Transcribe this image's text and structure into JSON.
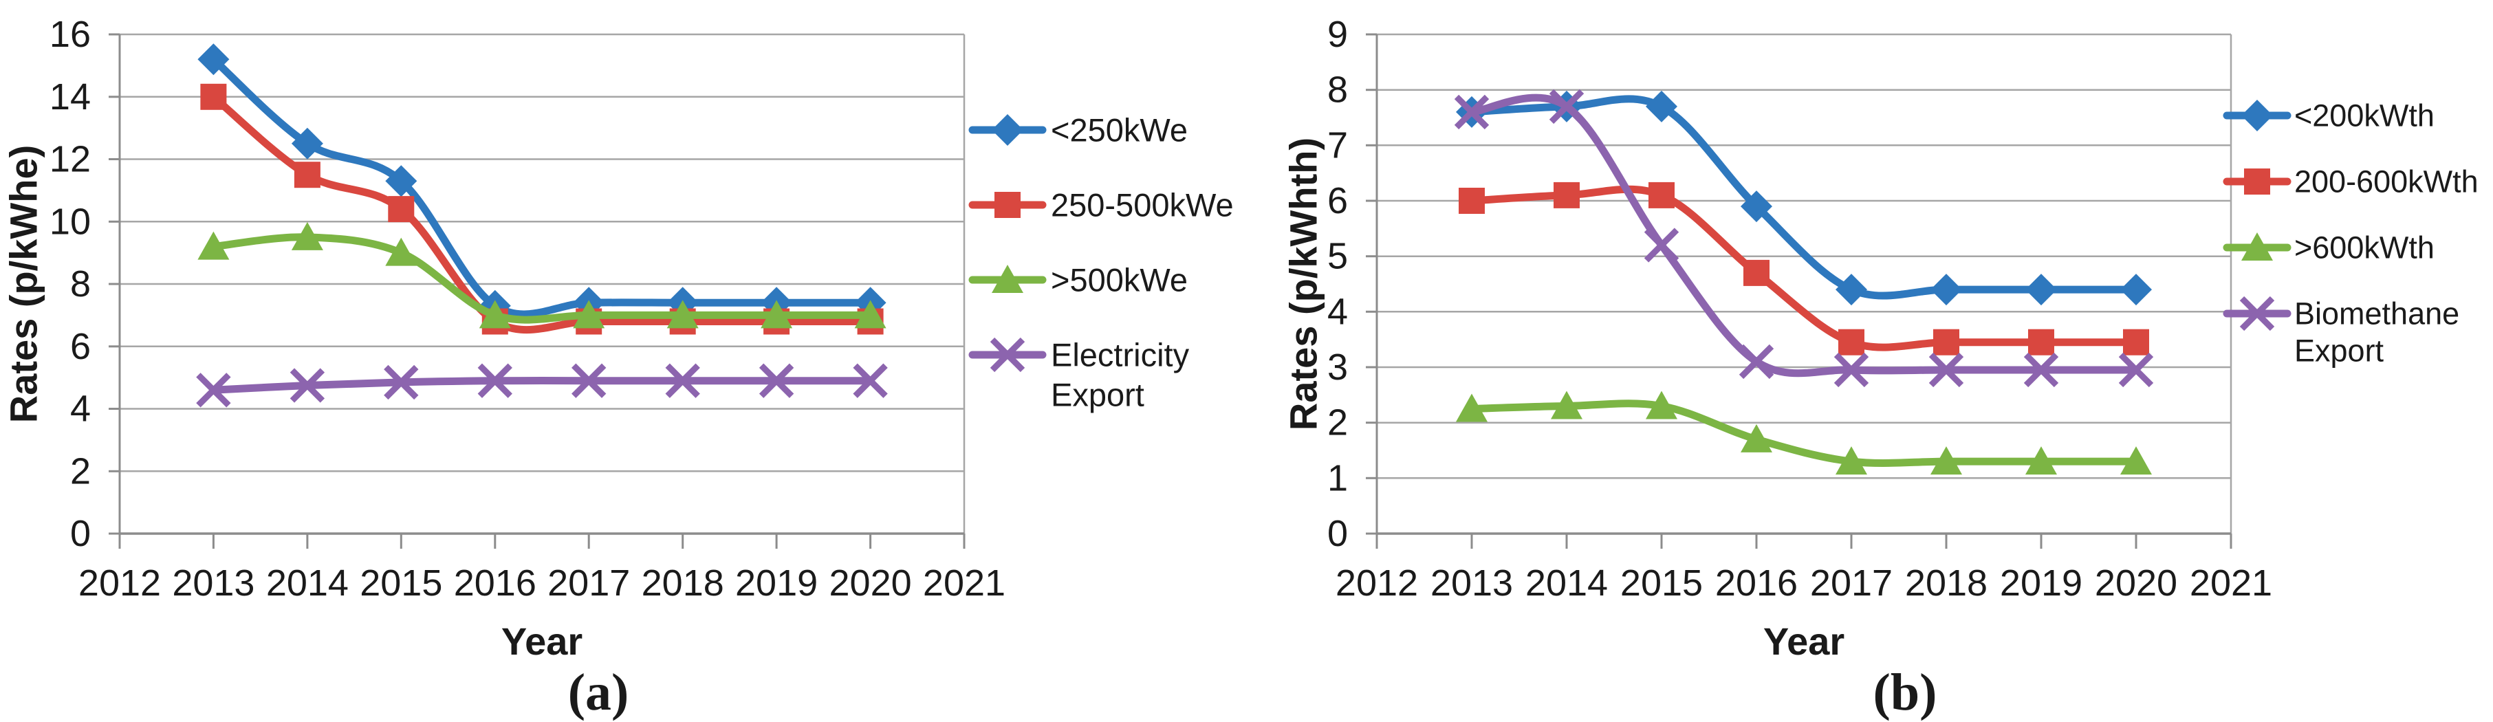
{
  "figure": {
    "background": "#ffffff",
    "text_color": "#1a1a1a",
    "gridline_color": "#a6a6a6",
    "axis_color": "#8c8c8c"
  },
  "chart_data": [
    {
      "id": "a",
      "type": "line",
      "caption": "(a)",
      "xlabel": "Year",
      "ylabel": "Rates (p/kWhe)",
      "grid": true,
      "smooth": true,
      "legend_position": "right",
      "xticks": [
        2012,
        2013,
        2014,
        2015,
        2016,
        2017,
        2018,
        2019,
        2020,
        2021
      ],
      "x": [
        2013,
        2014,
        2015,
        2016,
        2017,
        2018,
        2019,
        2020
      ],
      "ylim": [
        0,
        16
      ],
      "ytick_step": 2,
      "series": [
        {
          "name": "<250kWe",
          "color": "#2E78BE",
          "marker": "diamond",
          "values": [
            15.2,
            12.5,
            11.3,
            7.3,
            7.4,
            7.4,
            7.4,
            7.4
          ]
        },
        {
          "name": "250-500kWe",
          "color": "#D9473F",
          "marker": "square",
          "values": [
            14.0,
            11.5,
            10.4,
            6.8,
            6.8,
            6.8,
            6.8,
            6.8
          ]
        },
        {
          "name": ">500kWe",
          "color": "#7CB544",
          "marker": "triangle",
          "values": [
            9.2,
            9.5,
            9.0,
            7.0,
            7.0,
            7.0,
            7.0,
            7.0
          ]
        },
        {
          "name": "Electricity Export",
          "color": "#8C64AE",
          "marker": "x",
          "legend_lines": [
            "Electricity",
            "Export"
          ],
          "values": [
            4.6,
            4.75,
            4.85,
            4.9,
            4.9,
            4.9,
            4.9,
            4.9
          ]
        }
      ]
    },
    {
      "id": "b",
      "type": "line",
      "caption": "(b)",
      "xlabel": "Year",
      "ylabel": "Rates (p/kWhth)",
      "grid": true,
      "smooth": true,
      "legend_position": "right",
      "xticks": [
        2012,
        2013,
        2014,
        2015,
        2016,
        2017,
        2018,
        2019,
        2020,
        2021
      ],
      "x": [
        2013,
        2014,
        2015,
        2016,
        2017,
        2018,
        2019,
        2020
      ],
      "ylim": [
        0,
        9
      ],
      "ytick_step": 1,
      "series": [
        {
          "name": "<200kWth",
          "color": "#2E78BE",
          "marker": "diamond",
          "values": [
            7.6,
            7.7,
            7.7,
            5.9,
            4.4,
            4.4,
            4.4,
            4.4
          ]
        },
        {
          "name": "200-600kWth",
          "color": "#D9473F",
          "marker": "square",
          "values": [
            6.0,
            6.1,
            6.1,
            4.7,
            3.45,
            3.45,
            3.45,
            3.45
          ]
        },
        {
          "name": ">600kWth",
          "color": "#7CB544",
          "marker": "triangle",
          "values": [
            2.25,
            2.3,
            2.3,
            1.7,
            1.3,
            1.3,
            1.3,
            1.3
          ]
        },
        {
          "name": "Biomethane Export",
          "color": "#8C64AE",
          "marker": "x",
          "legend_lines": [
            "Biomethane",
            "Export"
          ],
          "values": [
            7.6,
            7.7,
            5.2,
            3.1,
            2.95,
            2.95,
            2.95,
            2.95
          ]
        }
      ]
    }
  ]
}
